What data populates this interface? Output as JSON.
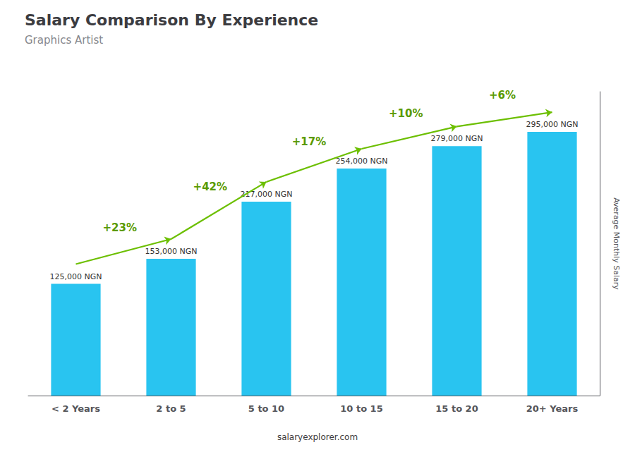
{
  "chart_data": {
    "type": "bar",
    "title": "Salary Comparison By Experience",
    "subtitle": "Graphics Artist",
    "categories": [
      "< 2 Years",
      "2 to 5",
      "5 to 10",
      "10 to 15",
      "15 to 20",
      "20+ Years"
    ],
    "values": [
      125000,
      153000,
      217000,
      254000,
      279000,
      295000
    ],
    "value_labels": [
      "125,000 NGN",
      "153,000 NGN",
      "217,000 NGN",
      "254,000 NGN",
      "279,000 NGN",
      "295,000 NGN"
    ],
    "data_labels": true,
    "color": "#29C4F0",
    "ylabel": "Average Monthly Salary",
    "ylim": [
      0,
      340000
    ],
    "annotations": [
      "+23%",
      "+42%",
      "+17%",
      "+10%",
      "+6%"
    ],
    "footer": "salaryexplorer.com",
    "grid": false,
    "tick_labels": "x"
  }
}
